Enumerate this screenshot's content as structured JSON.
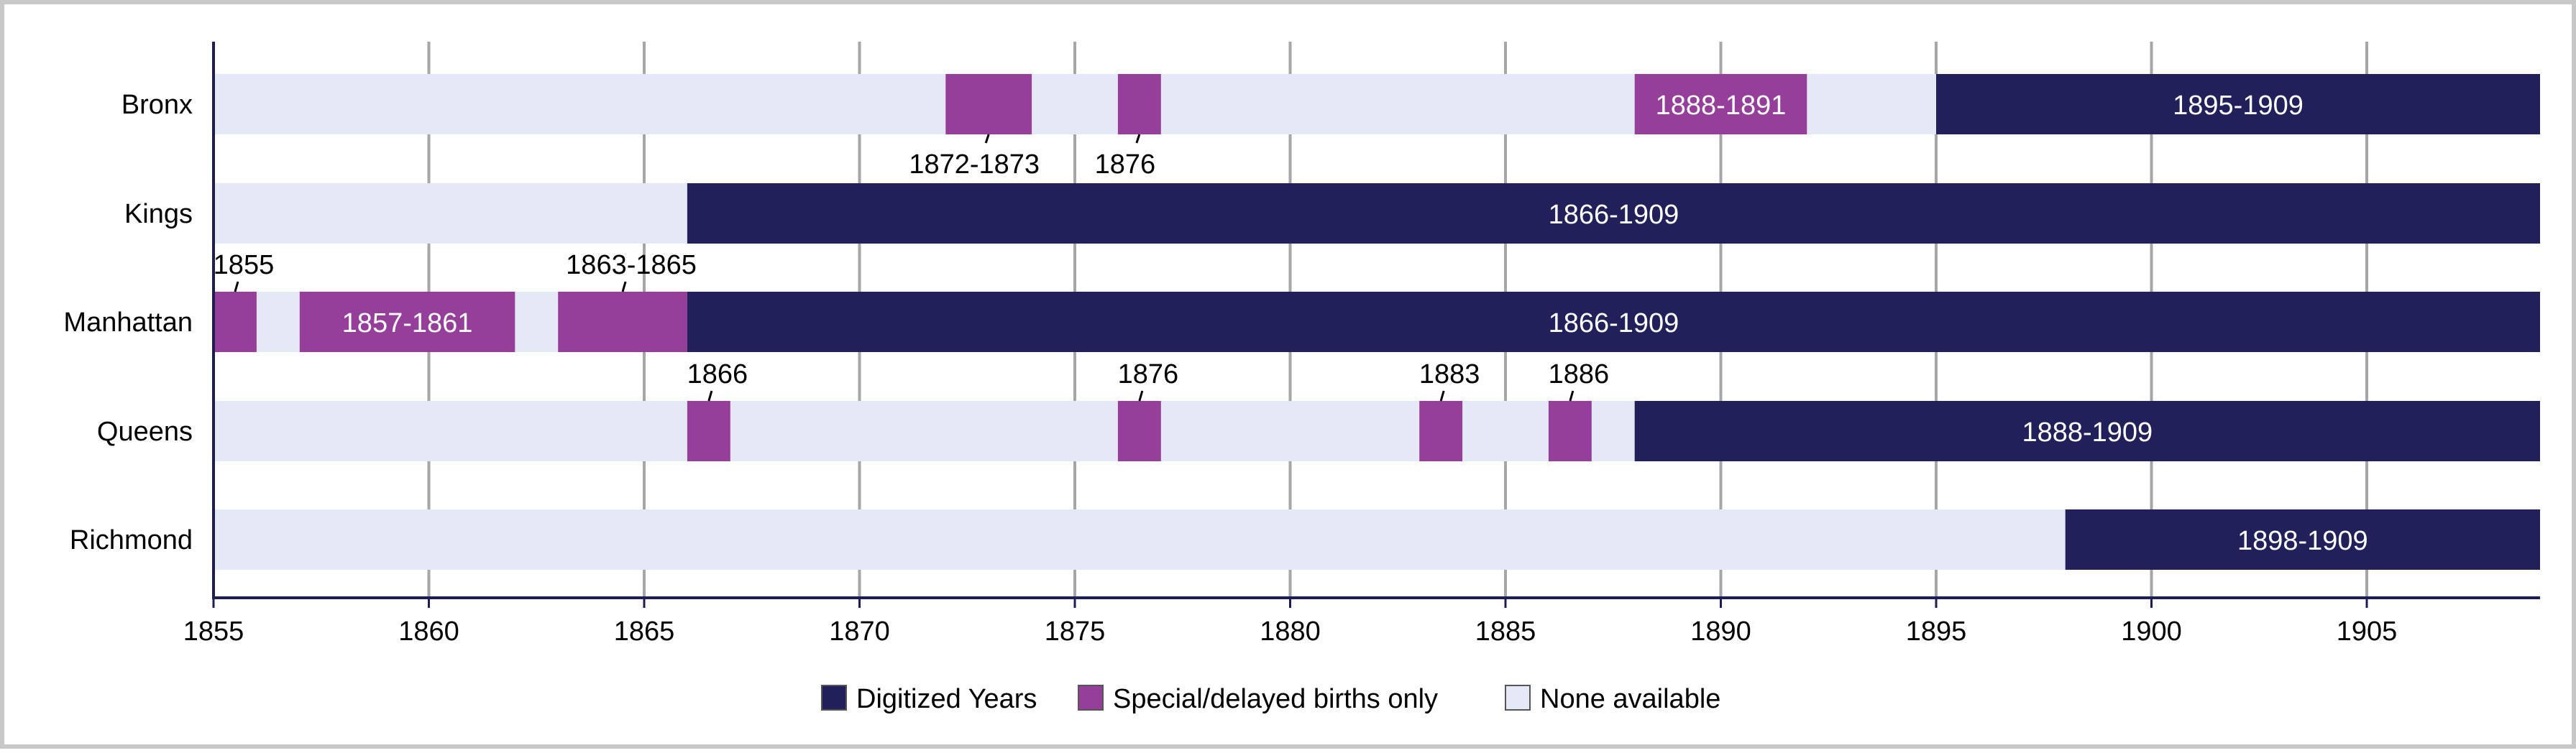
{
  "chart_data": {
    "type": "bar",
    "title": "",
    "xlabel": "",
    "ylabel": "",
    "xlim": [
      1855,
      1909
    ],
    "x_ticks": [
      "1855",
      "1860",
      "1865",
      "1870",
      "1875",
      "1880",
      "1885",
      "1890",
      "1895",
      "1900",
      "1905"
    ],
    "grid": "vertical",
    "legend_position": "bottom",
    "categories": [
      "Bronx",
      "Kings",
      "Manhattan",
      "Queens",
      "Richmond"
    ],
    "series": [
      {
        "name": "Digitized Years",
        "color": "#22205a"
      },
      {
        "name": "Special/delayed births only",
        "color": "#963f9a"
      },
      {
        "name": "None available",
        "color": "#e5e9f5"
      }
    ],
    "segments": [
      {
        "row": "Bronx",
        "start": 1872,
        "end": 1874,
        "status": "Special/delayed births only",
        "label": "1872-1873",
        "label_position": "below"
      },
      {
        "row": "Bronx",
        "start": 1876,
        "end": 1877,
        "status": "Special/delayed births only",
        "label": "1876",
        "label_position": "below"
      },
      {
        "row": "Bronx",
        "start": 1888,
        "end": 1892,
        "status": "Special/delayed births only",
        "label": "1888-1891",
        "label_position": "inside"
      },
      {
        "row": "Bronx",
        "start": 1895,
        "end": 1910,
        "status": "Digitized Years",
        "label": "1895-1909",
        "label_position": "inside"
      },
      {
        "row": "Kings",
        "start": 1866,
        "end": 1910,
        "status": "Digitized Years",
        "label": "1866-1909",
        "label_position": "inside"
      },
      {
        "row": "Manhattan",
        "start": 1855,
        "end": 1856,
        "status": "Special/delayed births only",
        "label": "1855",
        "label_position": "above"
      },
      {
        "row": "Manhattan",
        "start": 1857,
        "end": 1862,
        "status": "Special/delayed births only",
        "label": "1857-1861",
        "label_position": "inside"
      },
      {
        "row": "Manhattan",
        "start": 1863,
        "end": 1866,
        "status": "Special/delayed births only",
        "label": "1863-1865",
        "label_position": "above"
      },
      {
        "row": "Manhattan",
        "start": 1866,
        "end": 1910,
        "status": "Digitized Years",
        "label": "1866-1909",
        "label_position": "inside"
      },
      {
        "row": "Queens",
        "start": 1866,
        "end": 1867,
        "status": "Special/delayed births only",
        "label": "1866",
        "label_position": "above"
      },
      {
        "row": "Queens",
        "start": 1876,
        "end": 1877,
        "status": "Special/delayed births only",
        "label": "1876",
        "label_position": "above"
      },
      {
        "row": "Queens",
        "start": 1883,
        "end": 1884,
        "status": "Special/delayed births only",
        "label": "1883",
        "label_position": "above"
      },
      {
        "row": "Queens",
        "start": 1886,
        "end": 1887,
        "status": "Special/delayed births only",
        "label": "1886",
        "label_position": "above"
      },
      {
        "row": "Queens",
        "start": 1888,
        "end": 1910,
        "status": "Digitized Years",
        "label": "1888-1909",
        "label_position": "inside"
      },
      {
        "row": "Richmond",
        "start": 1898,
        "end": 1910,
        "status": "Digitized Years",
        "label": "1898-1909",
        "label_position": "inside"
      }
    ]
  }
}
